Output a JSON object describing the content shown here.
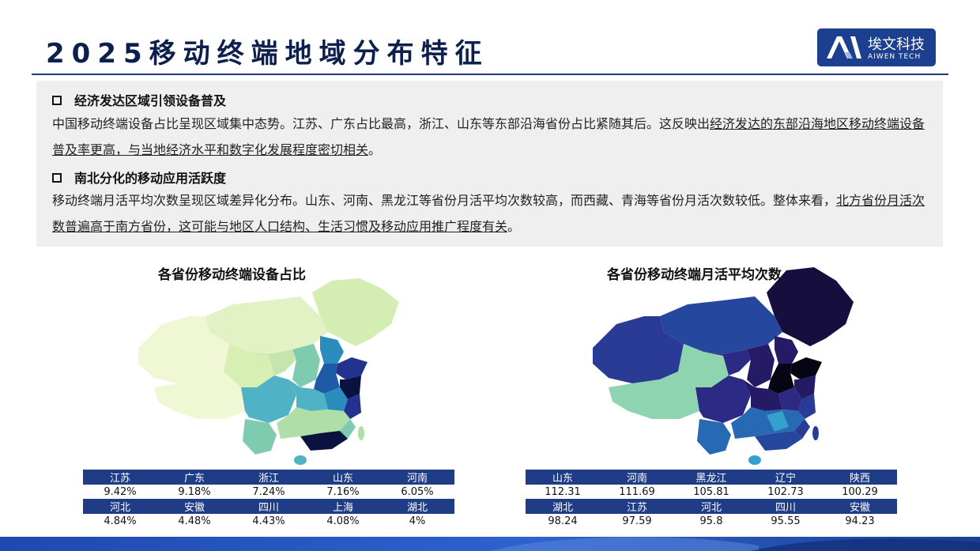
{
  "header": {
    "title": "2025移动终端地域分布特征",
    "logo_cn": "埃文科技",
    "logo_en": "AIWEN TECH"
  },
  "section1": {
    "heading": "经济发达区域引领设备普及",
    "text_plain": "中国移动终端设备占比呈现区域集中态势。江苏、广东占比最高，浙江、山东等东部沿海省份占比紧随其后。这反映出",
    "text_underlined": "经济发达的东部沿海地区移动终端设备普及率更高，与当地经济水平和数字化发展程度密切相关",
    "text_end": "。"
  },
  "section2": {
    "heading": "南北分化的移动应用活跃度",
    "text_plain": "移动终端月活平均次数呈现区域差异化分布。山东、河南、黑龙江等省份月活平均次数较高，而西藏、青海等省份月活次数较低。整体来看，",
    "text_underlined": "北方省份月活次数普遍高于南方省份，这可能与地区人口结构、生活习惯及移动应用推广程度有关",
    "text_end": "。"
  },
  "left_map": {
    "title": "各省份移动终端设备占比",
    "colors": [
      "#f0f7d4",
      "#d3edb2",
      "#b0dea9",
      "#7ecbb0",
      "#4fb3c5",
      "#2a8bbd",
      "#1f5aa6",
      "#23318f",
      "#0a1240"
    ]
  },
  "right_map": {
    "title": "各省份移动终端月活平均次数",
    "colors": [
      "#8fd4b0",
      "#35a0cf",
      "#2869b4",
      "#26479e",
      "#2a3b96",
      "#2d2a85",
      "#241a66",
      "#160f3e",
      "#050514"
    ]
  },
  "left_table": {
    "rows": [
      {
        "names": [
          "江苏",
          "广东",
          "浙江",
          "山东",
          "河南"
        ],
        "values": [
          "9.42%",
          "9.18%",
          "7.24%",
          "7.16%",
          "6.05%"
        ]
      },
      {
        "names": [
          "河北",
          "安徽",
          "四川",
          "上海",
          "湖北"
        ],
        "values": [
          "4.84%",
          "4.48%",
          "4.43%",
          "4.08%",
          "4%"
        ]
      }
    ]
  },
  "right_table": {
    "rows": [
      {
        "names": [
          "山东",
          "河南",
          "黑龙江",
          "辽宁",
          "陕西"
        ],
        "values": [
          "112.31",
          "111.69",
          "105.81",
          "102.73",
          "100.29"
        ]
      },
      {
        "names": [
          "湖北",
          "江苏",
          "河北",
          "四川",
          "安徽"
        ],
        "values": [
          "98.24",
          "97.59",
          "95.8",
          "95.55",
          "94.23"
        ]
      }
    ]
  },
  "chart_data": [
    {
      "type": "table",
      "title": "各省份移动终端设备占比",
      "categories": [
        "江苏",
        "广东",
        "浙江",
        "山东",
        "河南",
        "河北",
        "安徽",
        "四川",
        "上海",
        "湖北"
      ],
      "values": [
        9.42,
        9.18,
        7.24,
        7.16,
        6.05,
        4.84,
        4.48,
        4.43,
        4.08,
        4
      ]
    },
    {
      "type": "table",
      "title": "各省份移动终端月活平均次数",
      "categories": [
        "山东",
        "河南",
        "黑龙江",
        "辽宁",
        "陕西",
        "湖北",
        "江苏",
        "河北",
        "四川",
        "安徽"
      ],
      "values": [
        112.31,
        111.69,
        105.81,
        102.73,
        100.29,
        98.24,
        97.59,
        95.8,
        95.55,
        94.23
      ]
    }
  ]
}
